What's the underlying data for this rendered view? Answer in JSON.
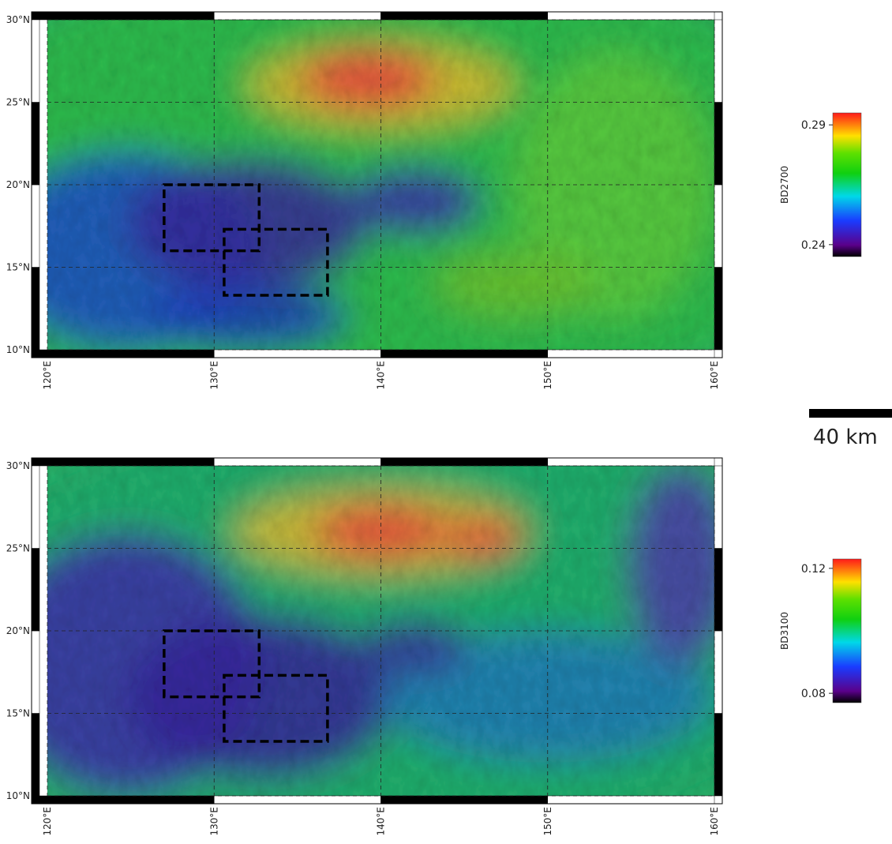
{
  "maps": [
    {
      "colorbar": {
        "label": "BD2700",
        "lim": [
          0.235,
          0.295
        ],
        "ticks": [
          0.24,
          0.29
        ]
      },
      "lat": {
        "lim": [
          10,
          30
        ],
        "ticks": [
          {
            "value": 10,
            "label": "10°N"
          },
          {
            "value": 15,
            "label": "15°N"
          },
          {
            "value": 20,
            "label": "20°N"
          },
          {
            "value": 25,
            "label": "25°N"
          },
          {
            "value": 30,
            "label": "30°N"
          }
        ]
      },
      "lon": {
        "lim": [
          120,
          160
        ],
        "ticks": [
          {
            "value": 120,
            "label": "120°E"
          },
          {
            "value": 130,
            "label": "130°E"
          },
          {
            "value": 140,
            "label": "140°E"
          },
          {
            "value": 150,
            "label": "150°E"
          },
          {
            "value": 160,
            "label": "160°E"
          }
        ]
      }
    },
    {
      "colorbar": {
        "label": "BD3100",
        "lim": [
          0.077,
          0.123
        ],
        "ticks": [
          0.08,
          0.12
        ]
      },
      "lat": {
        "lim": [
          10,
          30
        ],
        "ticks": [
          {
            "value": 10,
            "label": "10°N"
          },
          {
            "value": 15,
            "label": "15°N"
          },
          {
            "value": 20,
            "label": "20°N"
          },
          {
            "value": 25,
            "label": "25°N"
          },
          {
            "value": 30,
            "label": "30°N"
          }
        ]
      },
      "lon": {
        "lim": [
          120,
          160
        ],
        "ticks": [
          {
            "value": 120,
            "label": "120°E"
          },
          {
            "value": 130,
            "label": "130°E"
          },
          {
            "value": 140,
            "label": "140°E"
          },
          {
            "value": 150,
            "label": "150°E"
          },
          {
            "value": 160,
            "label": "160°E"
          }
        ]
      }
    }
  ],
  "scale_bar": {
    "label": "40 km"
  }
}
